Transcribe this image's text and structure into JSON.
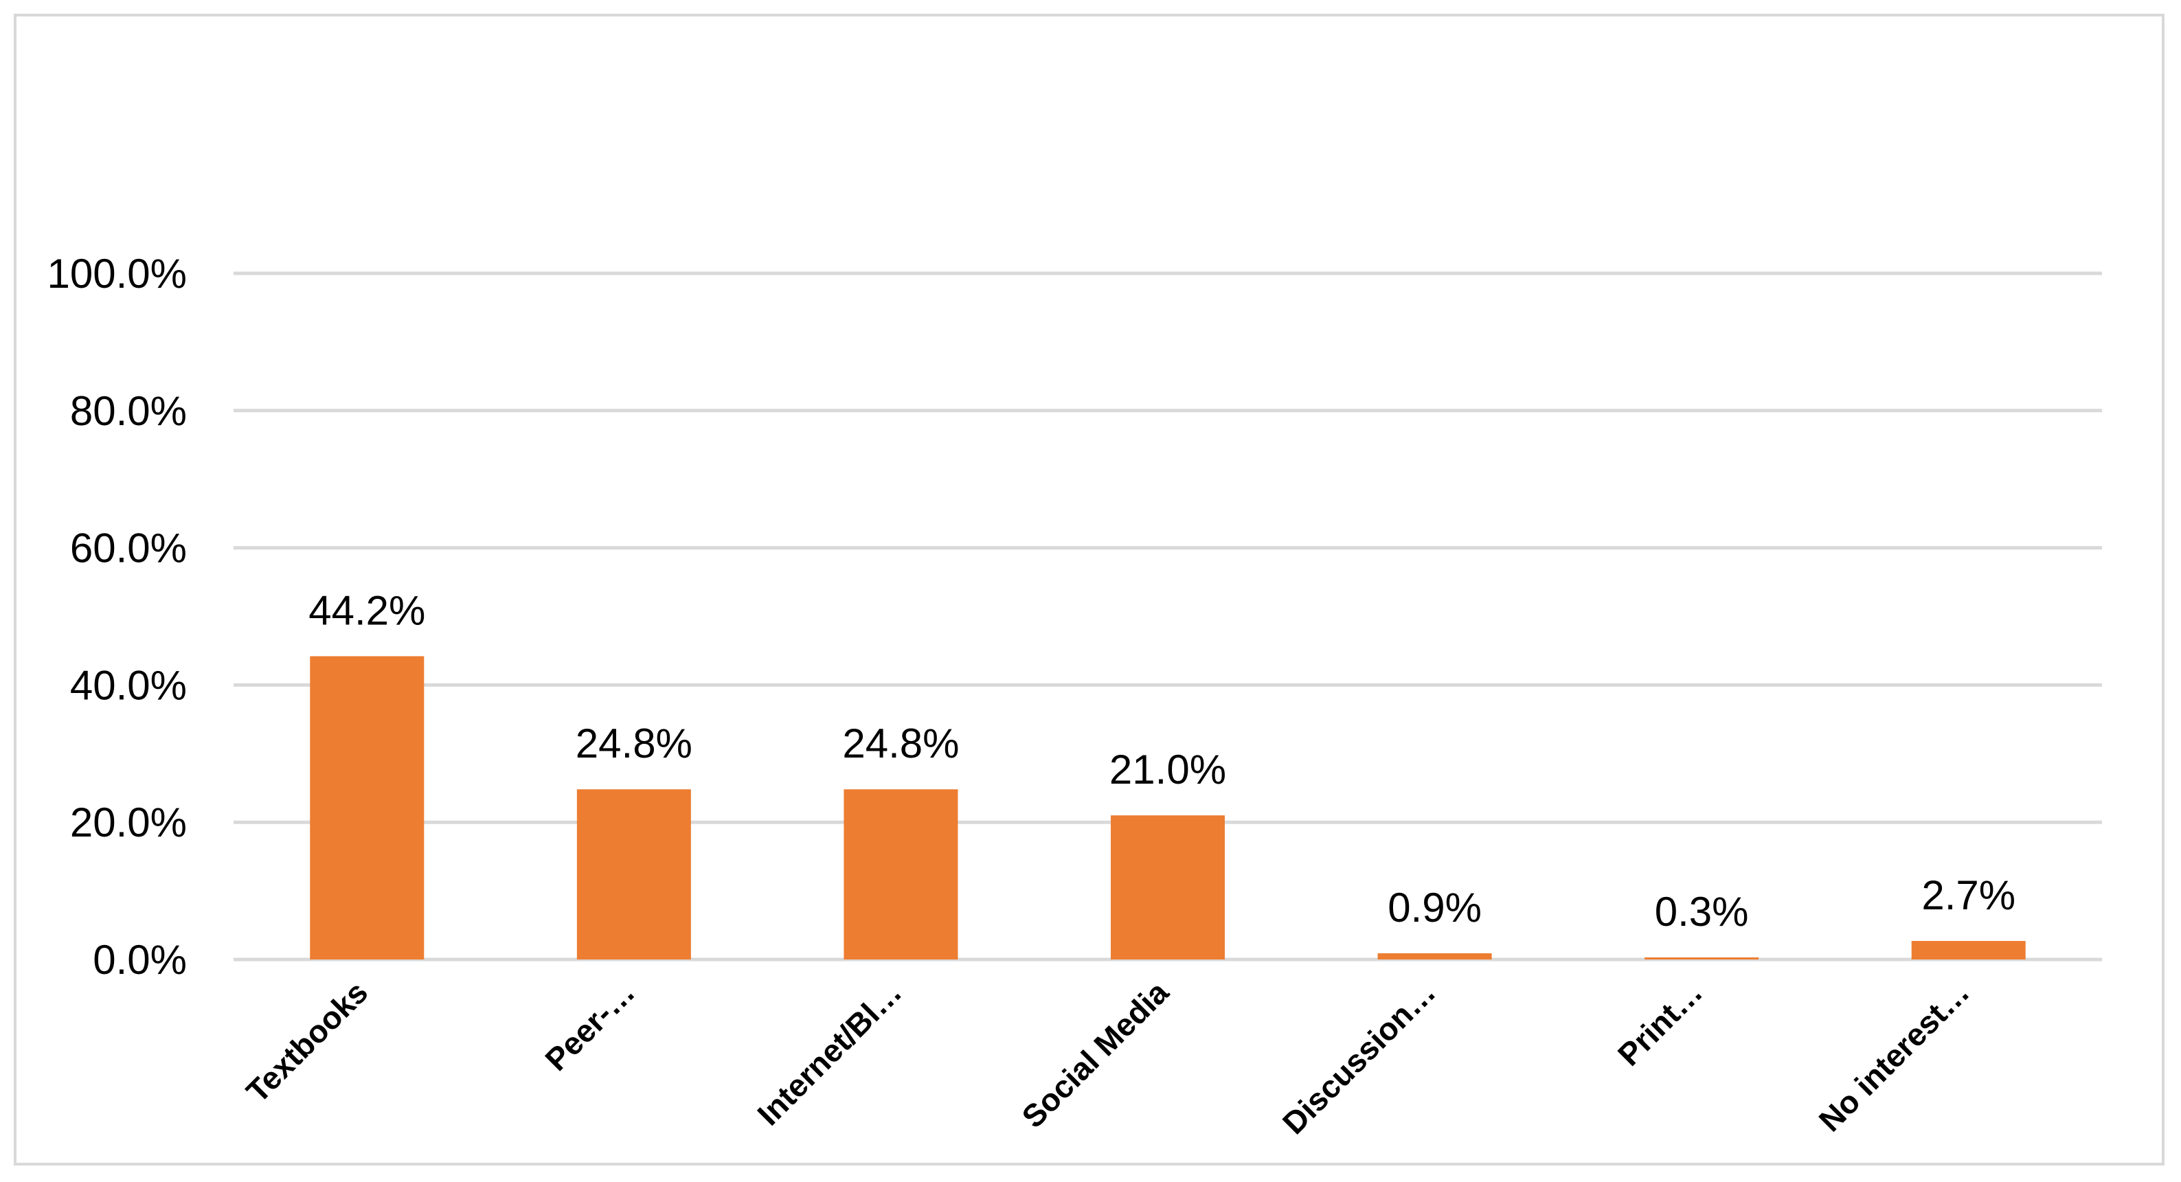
{
  "chart_data": {
    "type": "bar",
    "categories": [
      "Textbooks",
      "Peer-…",
      "Internet/Bl…",
      "Social Media",
      "Discussion…",
      "Print…",
      "No interest…"
    ],
    "values": [
      44.2,
      24.8,
      24.8,
      21.0,
      0.9,
      0.3,
      2.7
    ],
    "data_labels": [
      "44.2%",
      "24.8%",
      "24.8%",
      "21.0%",
      "0.9%",
      "0.3%",
      "2.7%"
    ],
    "y_ticks": [
      0,
      20,
      40,
      60,
      80,
      100
    ],
    "y_tick_labels": [
      "0.0%",
      "20.0%",
      "40.0%",
      "60.0%",
      "80.0%",
      "100.0%"
    ],
    "ylim": [
      0,
      100
    ],
    "grid": true,
    "legend": "none",
    "bar_color": "#ed7d31",
    "title": "",
    "xlabel": "",
    "ylabel": ""
  }
}
